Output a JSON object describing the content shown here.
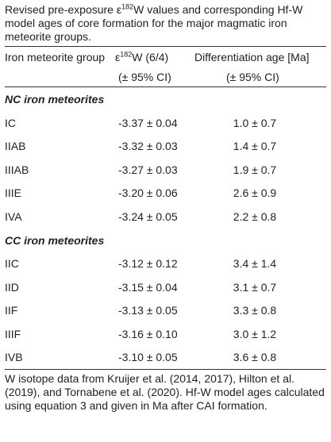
{
  "caption": {
    "before": "Revised pre-exposure ε",
    "superscript": "182",
    "after": "W values and corresponding Hf-W model ages of core formation for the major magmatic iron meteorite groups."
  },
  "table": {
    "columns": [
      {
        "label": "Iron meteorite group"
      },
      {
        "before": "ε",
        "superscript": "182",
        "after": "W (6/4)",
        "sublabel": "(± 95% CI)"
      },
      {
        "label": "Differentiation age [Ma]",
        "sublabel": "(± 95% CI)"
      }
    ],
    "sections": [
      {
        "title": "NC iron meteorites",
        "rows": [
          [
            "IC",
            "-3.37 ± 0.04",
            "1.0 ± 0.7"
          ],
          [
            "IIAB",
            "-3.32 ± 0.03",
            "1.4 ± 0.7"
          ],
          [
            "IIIAB",
            "-3.27 ± 0.03",
            "1.9 ± 0.7"
          ],
          [
            "IIIE",
            "-3.20 ± 0.06",
            "2.6 ± 0.9"
          ],
          [
            "IVA",
            "-3.24 ± 0.05",
            "2.2 ± 0.8"
          ]
        ]
      },
      {
        "title": "CC iron meteorites",
        "rows": [
          [
            "IIC",
            "-3.12 ± 0.12",
            "3.4 ± 1.4"
          ],
          [
            "IID",
            "-3.15 ± 0.04",
            "3.1 ± 0.7"
          ],
          [
            "IIF",
            "-3.13 ± 0.05",
            "3.3 ± 0.8"
          ],
          [
            "IIIF",
            "-3.16 ± 0.10",
            "3.0 ± 1.2"
          ],
          [
            "IVB",
            "-3.10 ± 0.05",
            "3.6 ± 0.8"
          ]
        ]
      }
    ]
  },
  "footnote": "W isotope data from Kruijer et al. (2014, 2017), Hilton et al. (2019), and Tornabene et al. (2020). Hf-W model ages calculated using equation 3 and given in Ma after CAI formation."
}
